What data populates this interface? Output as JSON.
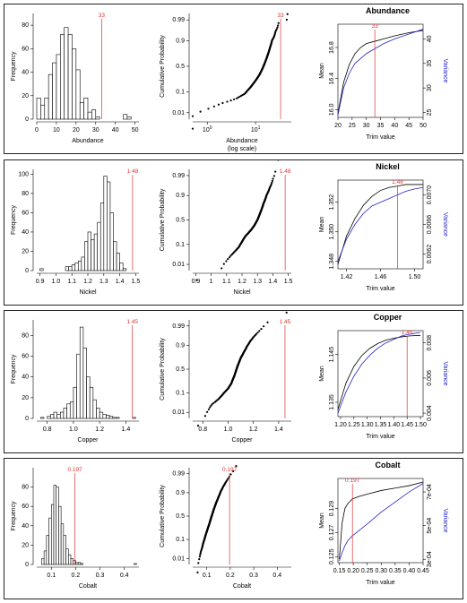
{
  "panels": [
    {
      "id": "abundance",
      "title": "Abundance",
      "variable": "Abundance",
      "log_note": "(log scale)",
      "cutoff_label": "33",
      "colors": {
        "hist": "#000",
        "cutoff": "#d33",
        "mean": "#000",
        "variance": "#22c"
      },
      "chart_data": [
        {
          "type": "bar",
          "panel": "histogram",
          "xlabel": "Abundance",
          "ylabel": "Frequency",
          "xlim": [
            0,
            52
          ],
          "ylim": [
            0,
            90
          ],
          "xticks": [
            "0",
            "10",
            "20",
            "30",
            "40",
            "50"
          ],
          "yticks": [
            "0",
            "20",
            "40",
            "60",
            "80"
          ],
          "bin_width": 2,
          "bin_start": 0,
          "values": [
            18,
            12,
            18,
            38,
            48,
            55,
            72,
            78,
            72,
            60,
            42,
            14,
            18,
            6,
            8,
            2,
            0,
            0,
            0,
            0,
            0,
            0,
            4,
            2,
            0,
            0
          ],
          "cutoff": 33
        },
        {
          "type": "scatter",
          "panel": "cumulative",
          "xlabel": "Abundance",
          "ylabel": "Cumulative Probability",
          "x_scale": "log",
          "y_scale": "probit",
          "xticks": [
            "10^0",
            "10^1"
          ],
          "yticks": [
            "0.01",
            "0.1",
            "0.5",
            "0.9",
            "0.99"
          ],
          "cutoff": 33
        },
        {
          "type": "line",
          "panel": "trim",
          "title": "Abundance",
          "xlabel": "Trim value",
          "ylabel": "Mean",
          "ylabel2": "Variance",
          "xlim": [
            20,
            50
          ],
          "ylim": [
            15.9,
            17.1
          ],
          "ylim2": [
            24,
            43
          ],
          "xticks": [
            "20",
            "25",
            "30",
            "35",
            "40",
            "45",
            "50"
          ],
          "yticks": [
            "16.0",
            "16.4",
            "16.8"
          ],
          "yticks2": [
            "25",
            "30",
            "35",
            "40"
          ],
          "series": [
            {
              "name": "Mean",
              "x": [
                20,
                22,
                24,
                26,
                28,
                30,
                33,
                36,
                40,
                45,
                50
              ],
              "values": [
                15.95,
                16.35,
                16.58,
                16.72,
                16.8,
                16.85,
                16.88,
                16.91,
                16.95,
                16.99,
                17.02
              ]
            },
            {
              "name": "Variance",
              "x": [
                20,
                22,
                24,
                26,
                28,
                30,
                33,
                36,
                40,
                45,
                50
              ],
              "values": [
                24.5,
                30,
                33,
                35,
                36,
                37,
                38,
                39,
                40,
                41,
                42
              ]
            }
          ],
          "cutoff": 33
        }
      ]
    },
    {
      "id": "nickel",
      "title": "Nickel",
      "variable": "Nickel",
      "log_note": "",
      "cutoff_label": "1.48",
      "colors": {
        "hist": "#000",
        "cutoff": "#d33",
        "mean": "#000",
        "variance": "#22c"
      },
      "chart_data": [
        {
          "type": "bar",
          "panel": "histogram",
          "xlabel": "Nickel",
          "ylabel": "Frequency",
          "xlim": [
            0.88,
            1.52
          ],
          "ylim": [
            0,
            105
          ],
          "xticks": [
            "0.9",
            "1.0",
            "1.1",
            "1.2",
            "1.3",
            "1.4",
            "1.5"
          ],
          "yticks": [
            "0",
            "20",
            "40",
            "60",
            "80",
            "100"
          ],
          "bin_width": 0.02,
          "bin_start": 0.9,
          "values": [
            2,
            0,
            0,
            0,
            0,
            0,
            0,
            0,
            4,
            4,
            6,
            8,
            10,
            14,
            30,
            40,
            32,
            38,
            50,
            70,
            98,
            92,
            60,
            30,
            18,
            8,
            2
          ],
          "cutoff": 1.48
        },
        {
          "type": "scatter",
          "panel": "cumulative",
          "xlabel": "Nickel",
          "ylabel": "Cumulative Probability",
          "x_scale": "linear",
          "y_scale": "probit",
          "xticks": [
            "0.9",
            "1",
            "1.1",
            "1.2",
            "1.3",
            "1.4",
            "1.5"
          ],
          "yticks": [
            "0.01",
            "0.1",
            "0.5",
            "0.9",
            "0.99"
          ],
          "cutoff": 1.48
        },
        {
          "type": "line",
          "panel": "trim",
          "title": "Nickel",
          "xlabel": "Trim value",
          "ylabel": "Mean",
          "ylabel2": "Variance",
          "xlim": [
            1.41,
            1.51
          ],
          "ylim": [
            1.3475,
            1.3535
          ],
          "ylim2": [
            0.006,
            0.0072
          ],
          "xticks": [
            "1.42",
            "1.46",
            "1.50"
          ],
          "yticks": [
            "1.348",
            "1.350",
            "1.352"
          ],
          "yticks2": [
            "0.0062",
            "0.0066",
            "0.0070"
          ],
          "series": [
            {
              "name": "Mean",
              "x": [
                1.41,
                1.42,
                1.43,
                1.44,
                1.45,
                1.46,
                1.47,
                1.48,
                1.49,
                1.5,
                1.51
              ],
              "values": [
                1.3478,
                1.3497,
                1.3509,
                1.3518,
                1.3524,
                1.3528,
                1.353,
                1.3531,
                1.3532,
                1.3532,
                1.3532
              ]
            },
            {
              "name": "Variance",
              "x": [
                1.41,
                1.42,
                1.43,
                1.44,
                1.45,
                1.46,
                1.47,
                1.48,
                1.49,
                1.5,
                1.51
              ],
              "values": [
                0.0061,
                0.0064,
                0.0066,
                0.00675,
                0.00685,
                0.0069,
                0.00695,
                0.007,
                0.00705,
                0.00708,
                0.0071
              ]
            }
          ],
          "cutoff": 1.48
        }
      ]
    },
    {
      "id": "copper",
      "title": "Copper",
      "variable": "Copper",
      "log_note": "",
      "cutoff_label": "1.45",
      "colors": {
        "hist": "#000",
        "cutoff": "#d33",
        "mean": "#000",
        "variance": "#22c"
      },
      "chart_data": [
        {
          "type": "bar",
          "panel": "histogram",
          "xlabel": "Copper",
          "ylabel": "Frequency",
          "xlim": [
            0.72,
            1.5
          ],
          "ylim": [
            0,
            95
          ],
          "xticks": [
            "0.8",
            "1.0",
            "1.2",
            "1.4"
          ],
          "yticks": [
            "0",
            "20",
            "40",
            "60",
            "80"
          ],
          "bin_width": 0.025,
          "bin_start": 0.75,
          "values": [
            1,
            0,
            2,
            4,
            6,
            4,
            6,
            10,
            14,
            16,
            30,
            62,
            88,
            68,
            40,
            30,
            18,
            10,
            6,
            4,
            3,
            2,
            1,
            1,
            0,
            0,
            0,
            0,
            1
          ],
          "cutoff": 1.45
        },
        {
          "type": "scatter",
          "panel": "cumulative",
          "xlabel": "Copper",
          "ylabel": "Cumulative Probability",
          "x_scale": "linear",
          "y_scale": "probit",
          "xticks": [
            "0.8",
            "1.0",
            "1.2",
            "1.4"
          ],
          "yticks": [
            "0.01",
            "0.1",
            "0.5",
            "0.9",
            "0.99"
          ],
          "cutoff": 1.45
        },
        {
          "type": "line",
          "panel": "trim",
          "title": "Copper",
          "xlabel": "Trim value",
          "ylabel": "Mean",
          "ylabel2": "Variance",
          "xlim": [
            1.19,
            1.51
          ],
          "ylim": [
            1.132,
            1.15
          ],
          "ylim2": [
            0.0038,
            0.0087
          ],
          "xticks": [
            "1.20",
            "1.25",
            "1.30",
            "1.35",
            "1.40",
            "1.45",
            "1.50"
          ],
          "yticks": [
            "1.135",
            "1.145"
          ],
          "yticks2": [
            "0.004",
            "0.006",
            "0.008"
          ],
          "series": [
            {
              "name": "Mean",
              "x": [
                1.19,
                1.22,
                1.25,
                1.28,
                1.31,
                1.34,
                1.37,
                1.4,
                1.43,
                1.46,
                1.5
              ],
              "values": [
                1.1335,
                1.139,
                1.1425,
                1.1448,
                1.1463,
                1.1473,
                1.148,
                1.1484,
                1.1487,
                1.1489,
                1.149
              ]
            },
            {
              "name": "Variance",
              "x": [
                1.19,
                1.22,
                1.25,
                1.28,
                1.31,
                1.34,
                1.37,
                1.4,
                1.43,
                1.46,
                1.5
              ],
              "values": [
                0.004,
                0.0052,
                0.0061,
                0.0068,
                0.0073,
                0.0077,
                0.008,
                0.0082,
                0.0084,
                0.0085,
                0.0086
              ]
            }
          ],
          "cutoff": 1.45
        }
      ]
    },
    {
      "id": "cobalt",
      "title": "Cobalt",
      "variable": "Cobalt",
      "log_note": "",
      "cutoff_label": "0.197",
      "colors": {
        "hist": "#000",
        "cutoff": "#d33",
        "mean": "#000",
        "variance": "#22c"
      },
      "chart_data": [
        {
          "type": "bar",
          "panel": "histogram",
          "xlabel": "Cobalt",
          "ylabel": "Frequency",
          "xlim": [
            0.04,
            0.46
          ],
          "ylim": [
            0,
            100
          ],
          "xticks": [
            "0.1",
            "0.2",
            "0.3",
            "0.4"
          ],
          "yticks": [
            "0",
            "20",
            "40",
            "60",
            "80"
          ],
          "bin_width": 0.01,
          "bin_start": 0.06,
          "values": [
            6,
            14,
            30,
            48,
            62,
            82,
            80,
            60,
            42,
            30,
            16,
            10,
            6,
            4,
            2,
            2,
            1,
            0,
            0,
            0,
            0,
            0,
            0,
            0,
            0,
            0,
            0,
            0,
            0,
            0,
            0,
            0,
            0,
            0,
            0,
            0,
            0,
            0,
            1
          ],
          "cutoff": 0.197
        },
        {
          "type": "scatter",
          "panel": "cumulative",
          "xlabel": "Cobalt",
          "ylabel": "Cumulative Probability",
          "x_scale": "linear",
          "y_scale": "probit",
          "xticks": [
            "0.1",
            "0.2",
            "0.3",
            "0.4"
          ],
          "yticks": [
            "0.01",
            "0.1",
            "0.5",
            "0.9",
            "0.99"
          ],
          "cutoff": 0.197
        },
        {
          "type": "line",
          "panel": "trim",
          "title": "Cobalt",
          "xlabel": "Trim value",
          "ylabel": "Mean",
          "ylabel2": "Variance",
          "xlim": [
            0.145,
            0.45
          ],
          "ylim": [
            0.1245,
            0.1315
          ],
          "ylim2": [
            0.00028,
            0.00078
          ],
          "xticks": [
            "0.15",
            "0.20",
            "0.25",
            "0.30",
            "0.35",
            "0.40",
            "0.45"
          ],
          "yticks": [
            "0.125",
            "0.127",
            "0.129"
          ],
          "yticks2": [
            "3e-04",
            "5e-04",
            "7e-04"
          ],
          "series": [
            {
              "name": "Mean",
              "x": [
                0.15,
                0.16,
                0.17,
                0.18,
                0.197,
                0.22,
                0.25,
                0.3,
                0.35,
                0.4,
                0.45
              ],
              "values": [
                0.1248,
                0.1278,
                0.129,
                0.1294,
                0.1298,
                0.13,
                0.1302,
                0.1305,
                0.1307,
                0.1309,
                0.1312
              ]
            },
            {
              "name": "Variance",
              "x": [
                0.15,
                0.16,
                0.17,
                0.18,
                0.197,
                0.22,
                0.25,
                0.3,
                0.35,
                0.4,
                0.45
              ],
              "values": [
                0.00029,
                0.00034,
                0.00038,
                0.00041,
                0.00044,
                0.00047,
                0.00051,
                0.00058,
                0.00064,
                0.0007,
                0.00075
              ]
            }
          ],
          "cutoff": 0.197
        }
      ]
    }
  ]
}
